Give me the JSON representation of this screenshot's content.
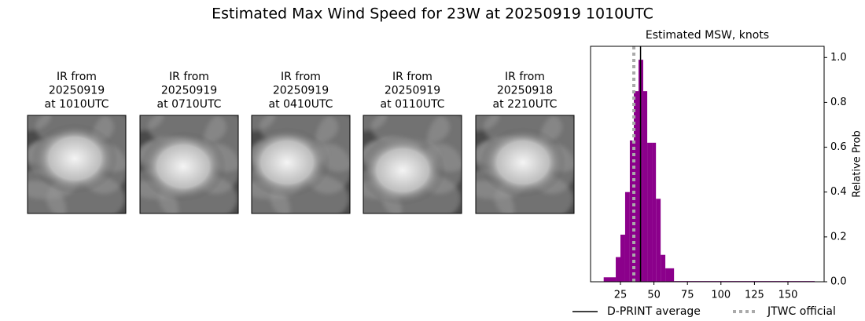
{
  "title": "Estimated Max Wind Speed for 23W at 20250919 1010UTC",
  "panels": [
    {
      "lines": [
        "IR from",
        "20250919",
        "at 1010UTC"
      ]
    },
    {
      "lines": [
        "IR from",
        "20250919",
        "at 0710UTC"
      ]
    },
    {
      "lines": [
        "IR from",
        "20250919",
        "at 0410UTC"
      ]
    },
    {
      "lines": [
        "IR from",
        "20250919",
        "at 0110UTC"
      ]
    },
    {
      "lines": [
        "IR from",
        "20250918",
        "at 2210UTC"
      ]
    }
  ],
  "chart_data": {
    "type": "histogram",
    "title": "Estimated MSW, knots",
    "ylabel": "Relative Prob",
    "color": "#8b008b",
    "bins": [
      12.5,
      21.5,
      25,
      28.5,
      32,
      35,
      38.5,
      42,
      45,
      48.5,
      51.5,
      55,
      58.5,
      65,
      170
    ],
    "counts": [
      0.02,
      0.11,
      0.21,
      0.4,
      0.63,
      0.85,
      0.99,
      0.85,
      0.62,
      0.62,
      0.37,
      0.12,
      0.06,
      0.003
    ],
    "xlim": [
      2.7,
      177
    ],
    "ylim": [
      0,
      1.05
    ],
    "xticks": [
      25,
      50,
      75,
      100,
      125,
      150
    ],
    "yticks": [
      {
        "value": 0,
        "label": "0.0"
      },
      {
        "value": 0.2,
        "label": "0.2"
      },
      {
        "value": 0.4,
        "label": "0.4"
      },
      {
        "value": 0.6,
        "label": "0.6"
      },
      {
        "value": 0.8,
        "label": "0.8"
      },
      {
        "value": 1.0,
        "label": "1.0"
      }
    ],
    "lines": [
      {
        "name": "D-PRINT average",
        "value": 40,
        "color": "#000000",
        "style": "solid"
      },
      {
        "name": "JTWC official",
        "value": 35,
        "color": "#aaaaaa",
        "style": "dotted"
      }
    ]
  }
}
